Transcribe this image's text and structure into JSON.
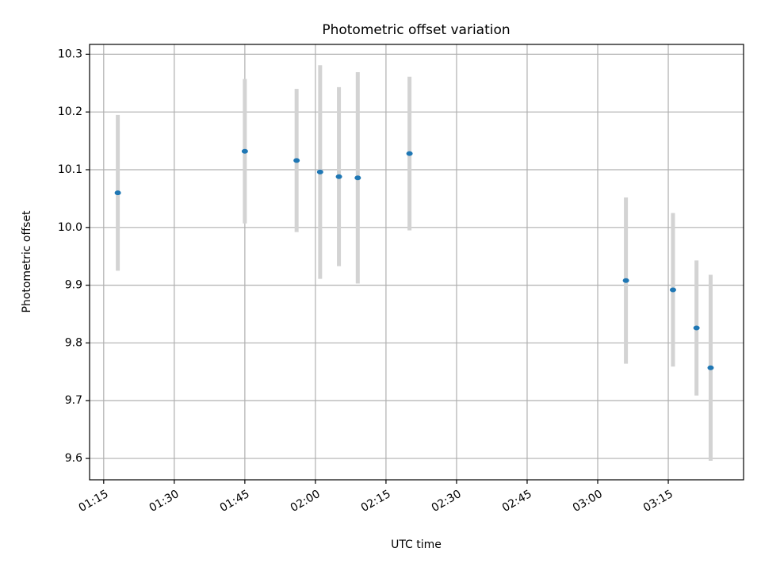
{
  "chart_data": {
    "type": "scatter",
    "title": "Photometric offset variation",
    "xlabel": "UTC time",
    "ylabel": "Photometric offset",
    "x_ticks": [
      "01:15",
      "01:30",
      "01:45",
      "02:00",
      "02:15",
      "02:30",
      "02:45",
      "03:00",
      "03:15"
    ],
    "y_ticks": [
      "9.6",
      "9.7",
      "9.8",
      "9.9",
      "10.0",
      "10.1",
      "10.2",
      "10.3"
    ],
    "xlim": [
      "01:12",
      "03:31"
    ],
    "ylim": [
      9.563,
      10.317
    ],
    "grid": true,
    "points": [
      {
        "x": "01:18",
        "y": 10.06,
        "err": 0.135
      },
      {
        "x": "01:45",
        "y": 10.132,
        "err": 0.125
      },
      {
        "x": "01:56",
        "y": 10.116,
        "err": 0.124
      },
      {
        "x": "02:01",
        "y": 10.096,
        "err": 0.185
      },
      {
        "x": "02:05",
        "y": 10.088,
        "err": 0.155
      },
      {
        "x": "02:09",
        "y": 10.086,
        "err": 0.183
      },
      {
        "x": "02:20",
        "y": 10.128,
        "err": 0.133
      },
      {
        "x": "03:06",
        "y": 9.908,
        "err": 0.144
      },
      {
        "x": "03:16",
        "y": 9.892,
        "err": 0.133
      },
      {
        "x": "03:21",
        "y": 9.826,
        "err": 0.117
      },
      {
        "x": "03:24",
        "y": 9.757,
        "err": 0.161
      }
    ],
    "colors": {
      "point": "#1f77b4",
      "errorbar": "#d3d3d3",
      "grid": "#b0b0b0",
      "axes": "#000000"
    }
  }
}
